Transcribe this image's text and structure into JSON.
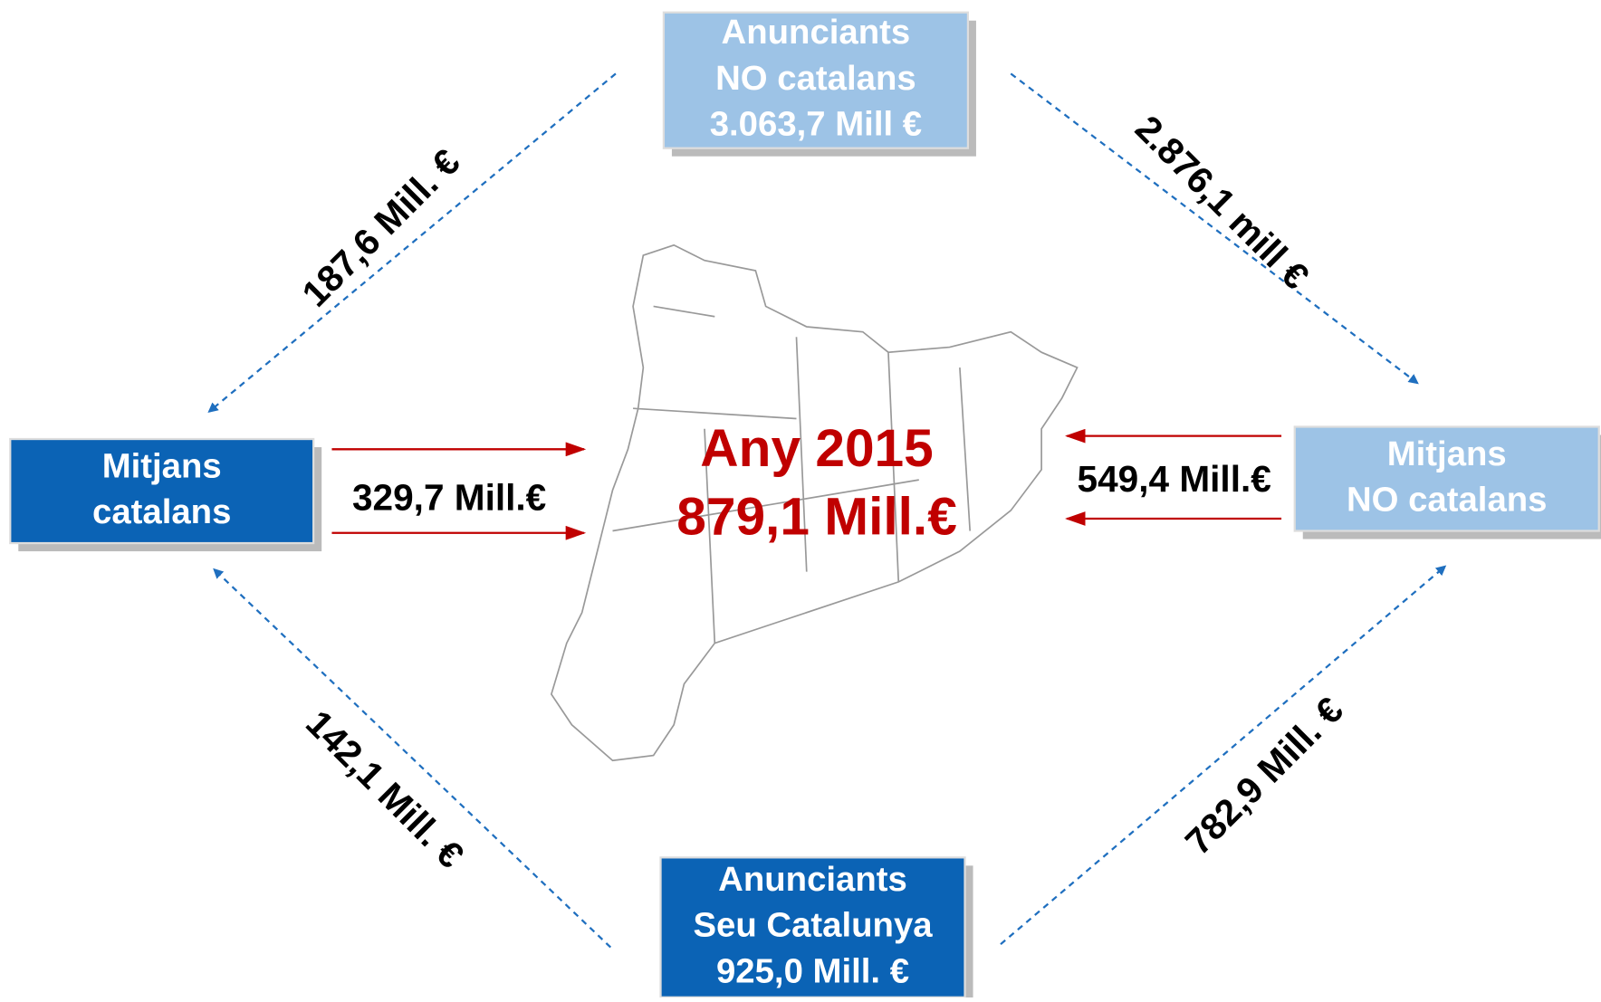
{
  "nodes": [
    {
      "lines": [
        "Anunciants",
        "NO catalans",
        "3.063,7 Mill €"
      ]
    },
    {
      "lines": [
        "Mitjans",
        "catalans"
      ]
    },
    {
      "lines": [
        "Mitjans",
        "NO catalans"
      ]
    },
    {
      "lines": [
        "Anunciants",
        "Seu Catalunya",
        "925,0 Mill. €"
      ]
    }
  ],
  "edges": [
    {
      "label": "187,6 Mill. €"
    },
    {
      "label": "2.876,1 mill €"
    },
    {
      "label": "142,1 Mill. €"
    },
    {
      "label": "782,9 Mill. €"
    },
    {
      "label": "329,7 Mill.€"
    },
    {
      "label": "549,4 Mill.€"
    }
  ],
  "center": {
    "lines": [
      "Any 2015",
      "879,1 Mill.€"
    ]
  }
}
